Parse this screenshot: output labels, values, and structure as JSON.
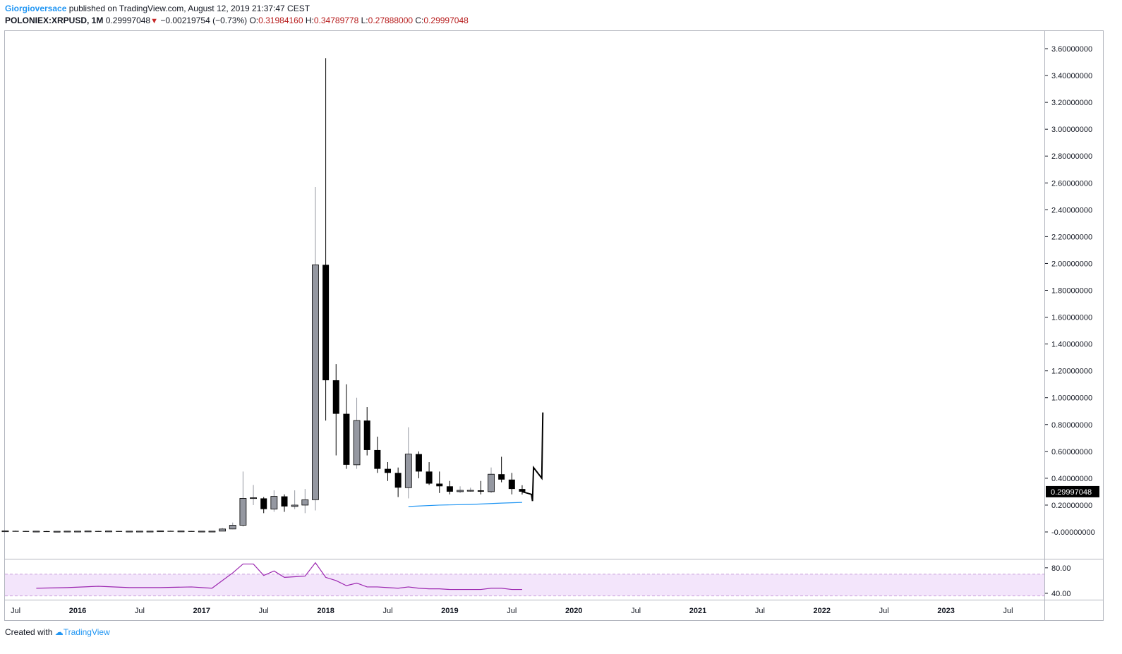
{
  "header": {
    "author": "Giorgioversace",
    "published_text": "published on TradingView.com, August 12, 2019 21:37:47 CEST",
    "symbol": "POLONIEX:XRPUSD, 1M",
    "last_price": "0.29997048",
    "change_arrow": "▼",
    "change": "−0.00219754 (−0.73%)",
    "open_label": "O:",
    "open": "0.31984160",
    "high_label": "H:",
    "high": "0.34789778",
    "low_label": "L:",
    "low": "0.27888000",
    "close_label": "C:",
    "close": "0.29997048"
  },
  "footer": {
    "created_with": "Created with",
    "brand": "TradingView"
  },
  "colors": {
    "up_candle": "#9598a1",
    "down_candle": "#000000",
    "ma_line": "#2196f3",
    "rsi_line": "#9c27b0",
    "rsi_band": "#f3e5fb",
    "price_badge": "#000000"
  },
  "chart_data": [
    {
      "type": "candlestick",
      "y_axis_position": "right",
      "ylim": [
        -0.1,
        3.7
      ],
      "y_ticks": [
        "3.60000000",
        "3.40000000",
        "3.20000000",
        "3.00000000",
        "2.80000000",
        "2.60000000",
        "2.40000000",
        "2.20000000",
        "2.00000000",
        "1.80000000",
        "1.60000000",
        "1.40000000",
        "1.20000000",
        "1.00000000",
        "0.80000000",
        "0.60000000",
        "0.40000000",
        "0.20000000",
        "-0.00000000"
      ],
      "last_price_label": "0.29997048",
      "x_ticks": [
        {
          "date": "2015-07",
          "label": "Jul",
          "major": false
        },
        {
          "date": "2016-01",
          "label": "2016",
          "major": true
        },
        {
          "date": "2016-07",
          "label": "Jul",
          "major": false
        },
        {
          "date": "2017-01",
          "label": "2017",
          "major": true
        },
        {
          "date": "2017-07",
          "label": "Jul",
          "major": false
        },
        {
          "date": "2018-01",
          "label": "2018",
          "major": true
        },
        {
          "date": "2018-07",
          "label": "Jul",
          "major": false
        },
        {
          "date": "2019-01",
          "label": "2019",
          "major": true
        },
        {
          "date": "2019-07",
          "label": "Jul",
          "major": false
        },
        {
          "date": "2020-01",
          "label": "2020",
          "major": true
        },
        {
          "date": "2020-07",
          "label": "Jul",
          "major": false
        },
        {
          "date": "2021-01",
          "label": "2021",
          "major": true
        },
        {
          "date": "2021-07",
          "label": "Jul",
          "major": false
        },
        {
          "date": "2022-01",
          "label": "2022",
          "major": true
        },
        {
          "date": "2022-07",
          "label": "Jul",
          "major": false
        },
        {
          "date": "2023-01",
          "label": "2023",
          "major": true
        },
        {
          "date": "2023-07",
          "label": "Jul",
          "major": false
        }
      ],
      "candles": [
        {
          "t": "2015-05",
          "o": 0.008,
          "h": 0.009,
          "l": 0.007,
          "c": 0.008
        },
        {
          "t": "2015-06",
          "o": 0.008,
          "h": 0.009,
          "l": 0.007,
          "c": 0.008
        },
        {
          "t": "2015-07",
          "o": 0.008,
          "h": 0.009,
          "l": 0.006,
          "c": 0.007
        },
        {
          "t": "2015-08",
          "o": 0.007,
          "h": 0.008,
          "l": 0.006,
          "c": 0.006
        },
        {
          "t": "2015-09",
          "o": 0.006,
          "h": 0.007,
          "l": 0.005,
          "c": 0.006
        },
        {
          "t": "2015-10",
          "o": 0.006,
          "h": 0.007,
          "l": 0.005,
          "c": 0.005
        },
        {
          "t": "2015-11",
          "o": 0.005,
          "h": 0.006,
          "l": 0.004,
          "c": 0.005
        },
        {
          "t": "2015-12",
          "o": 0.005,
          "h": 0.007,
          "l": 0.005,
          "c": 0.006
        },
        {
          "t": "2016-01",
          "o": 0.006,
          "h": 0.007,
          "l": 0.005,
          "c": 0.006
        },
        {
          "t": "2016-02",
          "o": 0.006,
          "h": 0.008,
          "l": 0.006,
          "c": 0.007
        },
        {
          "t": "2016-03",
          "o": 0.007,
          "h": 0.008,
          "l": 0.006,
          "c": 0.006
        },
        {
          "t": "2016-04",
          "o": 0.006,
          "h": 0.007,
          "l": 0.006,
          "c": 0.007
        },
        {
          "t": "2016-05",
          "o": 0.007,
          "h": 0.007,
          "l": 0.005,
          "c": 0.006
        },
        {
          "t": "2016-06",
          "o": 0.006,
          "h": 0.007,
          "l": 0.005,
          "c": 0.006
        },
        {
          "t": "2016-07",
          "o": 0.006,
          "h": 0.007,
          "l": 0.005,
          "c": 0.006
        },
        {
          "t": "2016-08",
          "o": 0.006,
          "h": 0.007,
          "l": 0.005,
          "c": 0.006
        },
        {
          "t": "2016-09",
          "o": 0.006,
          "h": 0.008,
          "l": 0.005,
          "c": 0.008
        },
        {
          "t": "2016-10",
          "o": 0.008,
          "h": 0.009,
          "l": 0.007,
          "c": 0.007
        },
        {
          "t": "2016-11",
          "o": 0.007,
          "h": 0.008,
          "l": 0.006,
          "c": 0.007
        },
        {
          "t": "2016-12",
          "o": 0.007,
          "h": 0.008,
          "l": 0.006,
          "c": 0.006
        },
        {
          "t": "2017-01",
          "o": 0.006,
          "h": 0.007,
          "l": 0.006,
          "c": 0.006
        },
        {
          "t": "2017-02",
          "o": 0.006,
          "h": 0.007,
          "l": 0.006,
          "c": 0.006
        },
        {
          "t": "2017-03",
          "o": 0.006,
          "h": 0.03,
          "l": 0.006,
          "c": 0.022
        },
        {
          "t": "2017-04",
          "o": 0.022,
          "h": 0.07,
          "l": 0.02,
          "c": 0.05
        },
        {
          "t": "2017-05",
          "o": 0.05,
          "h": 0.45,
          "l": 0.04,
          "c": 0.25
        },
        {
          "t": "2017-06",
          "o": 0.25,
          "h": 0.35,
          "l": 0.2,
          "c": 0.255
        },
        {
          "t": "2017-07",
          "o": 0.25,
          "h": 0.26,
          "l": 0.14,
          "c": 0.17
        },
        {
          "t": "2017-08",
          "o": 0.17,
          "h": 0.31,
          "l": 0.15,
          "c": 0.265
        },
        {
          "t": "2017-09",
          "o": 0.265,
          "h": 0.28,
          "l": 0.15,
          "c": 0.19
        },
        {
          "t": "2017-10",
          "o": 0.19,
          "h": 0.31,
          "l": 0.17,
          "c": 0.2
        },
        {
          "t": "2017-11",
          "o": 0.2,
          "h": 0.32,
          "l": 0.14,
          "c": 0.24
        },
        {
          "t": "2017-12",
          "o": 0.24,
          "h": 2.57,
          "l": 0.16,
          "c": 1.99
        },
        {
          "t": "2018-01",
          "o": 1.99,
          "h": 3.53,
          "l": 0.83,
          "c": 1.13
        },
        {
          "t": "2018-02",
          "o": 1.13,
          "h": 1.25,
          "l": 0.57,
          "c": 0.88
        },
        {
          "t": "2018-03",
          "o": 0.88,
          "h": 1.1,
          "l": 0.47,
          "c": 0.5
        },
        {
          "t": "2018-04",
          "o": 0.5,
          "h": 1.0,
          "l": 0.47,
          "c": 0.83
        },
        {
          "t": "2018-05",
          "o": 0.83,
          "h": 0.93,
          "l": 0.57,
          "c": 0.61
        },
        {
          "t": "2018-06",
          "o": 0.61,
          "h": 0.71,
          "l": 0.44,
          "c": 0.47
        },
        {
          "t": "2018-07",
          "o": 0.47,
          "h": 0.52,
          "l": 0.38,
          "c": 0.44
        },
        {
          "t": "2018-08",
          "o": 0.44,
          "h": 0.48,
          "l": 0.26,
          "c": 0.33
        },
        {
          "t": "2018-09",
          "o": 0.33,
          "h": 0.78,
          "l": 0.25,
          "c": 0.58
        },
        {
          "t": "2018-10",
          "o": 0.58,
          "h": 0.6,
          "l": 0.4,
          "c": 0.45
        },
        {
          "t": "2018-11",
          "o": 0.45,
          "h": 0.52,
          "l": 0.35,
          "c": 0.36
        },
        {
          "t": "2018-12",
          "o": 0.36,
          "h": 0.45,
          "l": 0.29,
          "c": 0.34
        },
        {
          "t": "2019-01",
          "o": 0.34,
          "h": 0.38,
          "l": 0.28,
          "c": 0.3
        },
        {
          "t": "2019-02",
          "o": 0.3,
          "h": 0.34,
          "l": 0.29,
          "c": 0.31
        },
        {
          "t": "2019-03",
          "o": 0.31,
          "h": 0.33,
          "l": 0.3,
          "c": 0.31
        },
        {
          "t": "2019-04",
          "o": 0.31,
          "h": 0.38,
          "l": 0.28,
          "c": 0.3
        },
        {
          "t": "2019-05",
          "o": 0.3,
          "h": 0.48,
          "l": 0.29,
          "c": 0.43
        },
        {
          "t": "2019-06",
          "o": 0.43,
          "h": 0.56,
          "l": 0.37,
          "c": 0.39
        },
        {
          "t": "2019-07",
          "o": 0.39,
          "h": 0.44,
          "l": 0.28,
          "c": 0.32
        },
        {
          "t": "2019-08",
          "o": 0.32,
          "h": 0.348,
          "l": 0.279,
          "c": 0.3
        }
      ],
      "ma_line": [
        {
          "t": "2018-09",
          "v": 0.19
        },
        {
          "t": "2018-12",
          "v": 0.2
        },
        {
          "t": "2019-03",
          "v": 0.205
        },
        {
          "t": "2019-06",
          "v": 0.215
        },
        {
          "t": "2019-08",
          "v": 0.22
        }
      ],
      "projection": [
        {
          "t": "2019-08",
          "v": 0.3
        },
        {
          "t": "2019-08.9",
          "v": 0.28
        },
        {
          "t": "2019-09",
          "v": 0.23
        },
        {
          "t": "2019-09.1",
          "v": 0.48
        },
        {
          "t": "2019-09.9",
          "v": 0.4
        },
        {
          "t": "2019-10",
          "v": 0.89
        }
      ]
    },
    {
      "type": "line",
      "name": "",
      "ylim": [
        30,
        92
      ],
      "y_ticks": [
        "80.00",
        "40.00"
      ],
      "band": [
        36,
        70
      ],
      "points": [
        {
          "t": "2015-09",
          "v": 48
        },
        {
          "t": "2015-12",
          "v": 49
        },
        {
          "t": "2016-03",
          "v": 51
        },
        {
          "t": "2016-06",
          "v": 49
        },
        {
          "t": "2016-09",
          "v": 49
        },
        {
          "t": "2016-12",
          "v": 50
        },
        {
          "t": "2017-02",
          "v": 48
        },
        {
          "t": "2017-03",
          "v": 60
        },
        {
          "t": "2017-04",
          "v": 72
        },
        {
          "t": "2017-05",
          "v": 86
        },
        {
          "t": "2017-06",
          "v": 86
        },
        {
          "t": "2017-07",
          "v": 68
        },
        {
          "t": "2017-08",
          "v": 75
        },
        {
          "t": "2017-09",
          "v": 65
        },
        {
          "t": "2017-10",
          "v": 66
        },
        {
          "t": "2017-11",
          "v": 67
        },
        {
          "t": "2017-12",
          "v": 88
        },
        {
          "t": "2018-01",
          "v": 65
        },
        {
          "t": "2018-02",
          "v": 60
        },
        {
          "t": "2018-03",
          "v": 52
        },
        {
          "t": "2018-04",
          "v": 56
        },
        {
          "t": "2018-05",
          "v": 50
        },
        {
          "t": "2018-06",
          "v": 50
        },
        {
          "t": "2018-07",
          "v": 49
        },
        {
          "t": "2018-08",
          "v": 48
        },
        {
          "t": "2018-09",
          "v": 50
        },
        {
          "t": "2018-10",
          "v": 48
        },
        {
          "t": "2018-11",
          "v": 47
        },
        {
          "t": "2018-12",
          "v": 47
        },
        {
          "t": "2019-01",
          "v": 46
        },
        {
          "t": "2019-03",
          "v": 46
        },
        {
          "t": "2019-04",
          "v": 46
        },
        {
          "t": "2019-05",
          "v": 48
        },
        {
          "t": "2019-06",
          "v": 48
        },
        {
          "t": "2019-07",
          "v": 46
        },
        {
          "t": "2019-08",
          "v": 46
        }
      ]
    }
  ]
}
